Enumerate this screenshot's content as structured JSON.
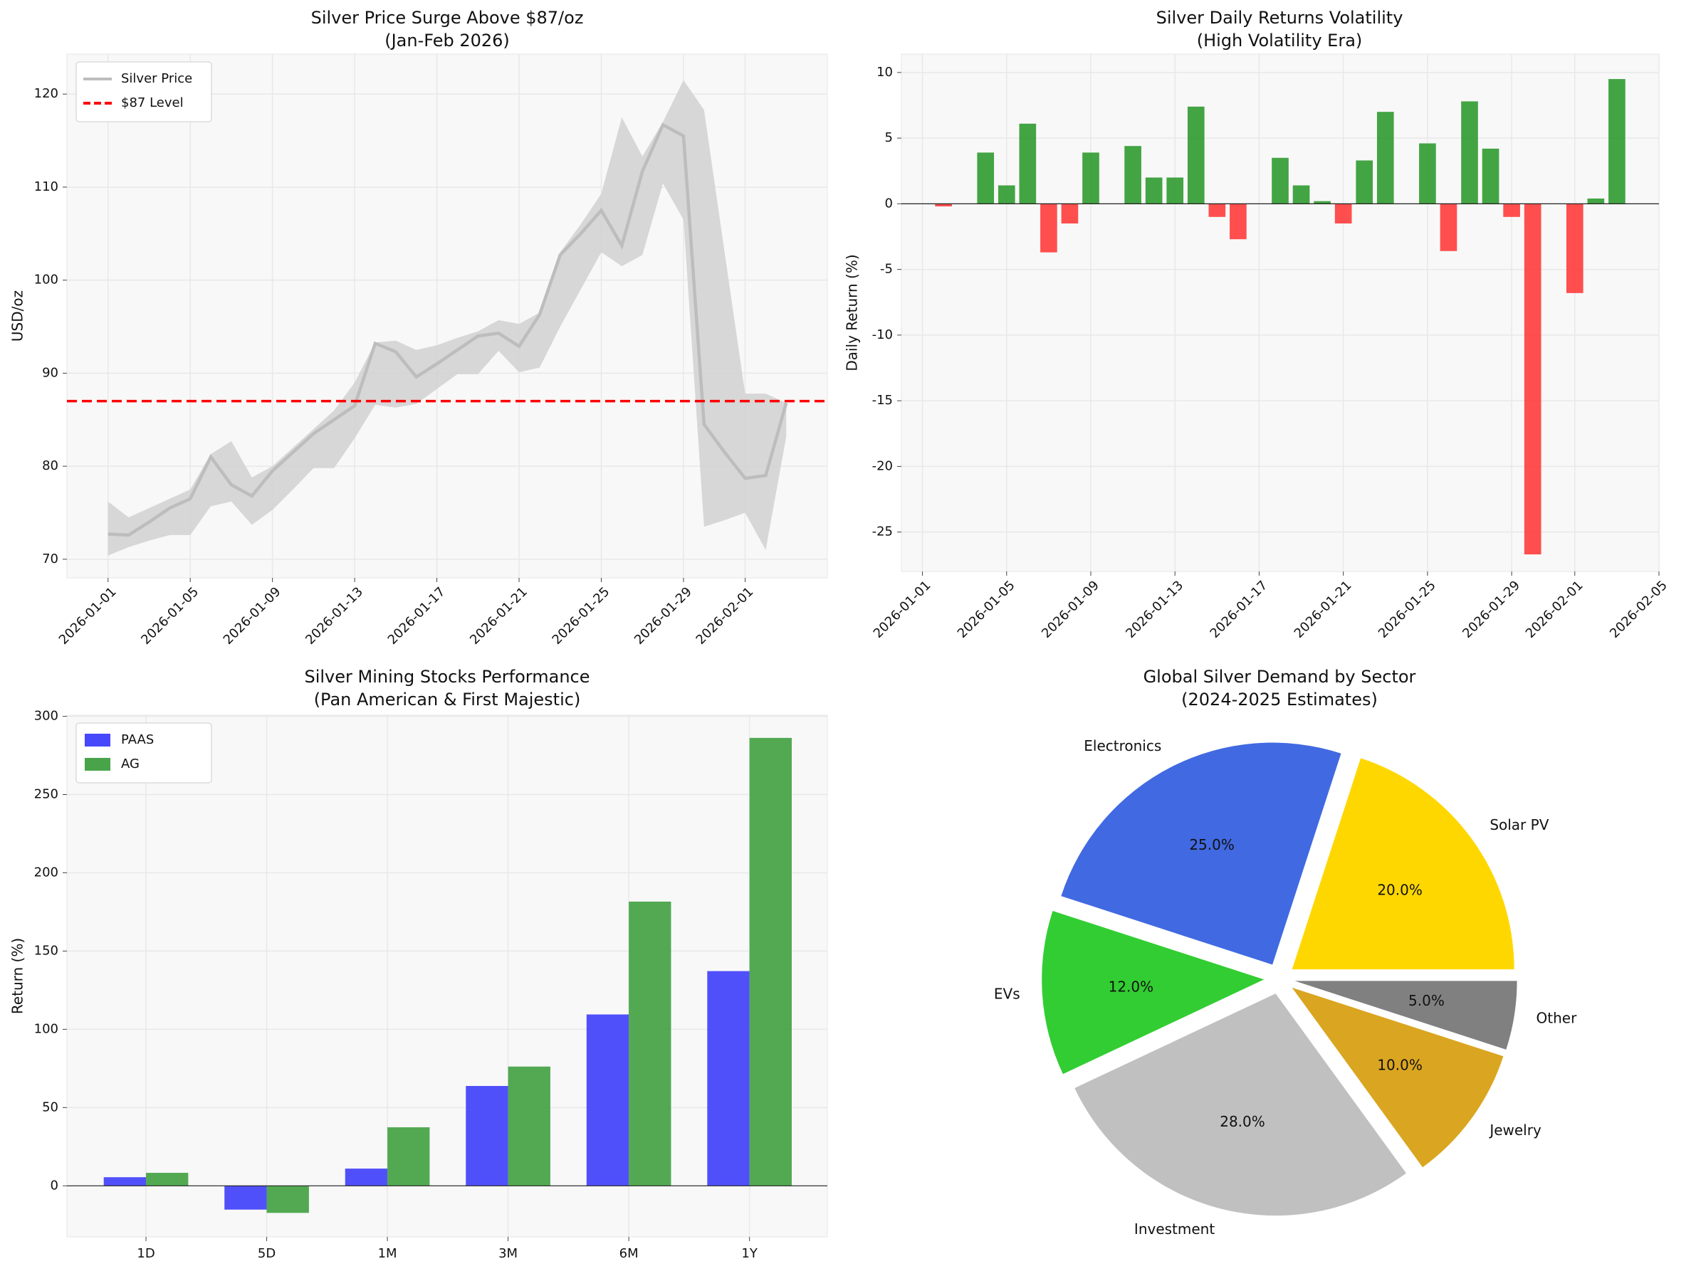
{
  "chart_data": [
    {
      "type": "line",
      "title": "Silver Price Surge Above $87/oz",
      "subtitle": "(Jan-Feb 2026)",
      "ylabel": "USD/oz",
      "x": [
        "2026-01-01",
        "2026-01-02",
        "2026-01-03",
        "2026-01-04",
        "2026-01-05",
        "2026-01-06",
        "2026-01-07",
        "2026-01-08",
        "2026-01-09",
        "2026-01-10",
        "2026-01-11",
        "2026-01-12",
        "2026-01-13",
        "2026-01-14",
        "2026-01-15",
        "2026-01-16",
        "2026-01-17",
        "2026-01-18",
        "2026-01-19",
        "2026-01-20",
        "2026-01-21",
        "2026-01-22",
        "2026-01-23",
        "2026-01-24",
        "2026-01-25",
        "2026-01-26",
        "2026-01-27",
        "2026-01-28",
        "2026-01-29",
        "2026-01-30",
        "2026-01-31",
        "2026-02-01",
        "2026-02-02",
        "2026-02-03"
      ],
      "series": [
        {
          "name": "Silver Price",
          "color": "#bdbdbd",
          "values": [
            72.7,
            72.6,
            74,
            75.5,
            76.5,
            81,
            78,
            76.8,
            79.5,
            81.5,
            83.5,
            85,
            86.5,
            93.2,
            92.3,
            89.6,
            91,
            92.5,
            94,
            94.3,
            92.9,
            96.3,
            102.7,
            105,
            107.5,
            103.7,
            111.7,
            116.7,
            115.5,
            84.5,
            81.5,
            78.7,
            79,
            86.8
          ]
        }
      ],
      "band": {
        "color": "#d3d3d3",
        "upper": [
          76.2,
          74.5,
          75.5,
          76.5,
          77.5,
          81.3,
          82.7,
          78.8,
          80,
          82,
          84,
          86,
          89,
          93.3,
          93.5,
          92.5,
          93,
          93.8,
          94.5,
          95.7,
          95.3,
          96.5,
          103,
          106,
          109.3,
          117.5,
          113.3,
          117,
          121.5,
          118.3,
          103,
          87.8,
          87.8,
          86.8
        ],
        "lower": [
          70.4,
          71.3,
          72,
          72.6,
          72.6,
          75.7,
          76.2,
          73.7,
          75.3,
          77.5,
          79.8,
          79.8,
          83,
          86.6,
          86.3,
          86.7,
          88.3,
          89.9,
          89.9,
          92.4,
          90.1,
          90.6,
          95,
          99,
          103,
          101.5,
          102.7,
          110.4,
          106.5,
          73.5,
          74.2,
          75,
          71,
          83.2
        ]
      },
      "hlines": [
        {
          "name": "$87 Level",
          "value": 87,
          "color": "#ff0000"
        }
      ],
      "xlim": [
        "2025-12-30",
        "2026-02-05"
      ],
      "xticks": [
        "2026-01-01",
        "2026-01-05",
        "2026-01-09",
        "2026-01-13",
        "2026-01-17",
        "2026-01-21",
        "2026-01-25",
        "2026-01-29",
        "2026-02-01"
      ],
      "ylim": [
        68,
        124.3
      ],
      "yticks": [
        70,
        80,
        90,
        100,
        110,
        120
      ],
      "grid": true,
      "legend": "upper left"
    },
    {
      "type": "bar",
      "title": "Silver Daily Returns Volatility",
      "subtitle": "(High Volatility Era)",
      "ylabel": "Daily Return (%)",
      "x": [
        "2026-01-02",
        "2026-01-04",
        "2026-01-05",
        "2026-01-06",
        "2026-01-07",
        "2026-01-08",
        "2026-01-09",
        "2026-01-11",
        "2026-01-12",
        "2026-01-13",
        "2026-01-14",
        "2026-01-15",
        "2026-01-16",
        "2026-01-18",
        "2026-01-19",
        "2026-01-20",
        "2026-01-21",
        "2026-01-22",
        "2026-01-23",
        "2026-01-25",
        "2026-01-26",
        "2026-01-27",
        "2026-01-28",
        "2026-01-29",
        "2026-01-30",
        "2026-02-01",
        "2026-02-02",
        "2026-02-03"
      ],
      "values": [
        -0.2,
        3.9,
        1.4,
        6.1,
        -3.7,
        -1.5,
        3.9,
        4.4,
        2.0,
        2.0,
        7.4,
        -1.0,
        -2.7,
        3.5,
        1.4,
        0.2,
        -1.5,
        3.3,
        7.0,
        4.6,
        -3.6,
        7.8,
        4.2,
        -1.0,
        -26.7,
        -6.8,
        0.4,
        9.5
      ],
      "positive_color": "#2f9a2f",
      "negative_color": "#ff3b3b",
      "xlim": [
        "2025-12-31",
        "2026-02-05"
      ],
      "xticks": [
        "2026-01-01",
        "2026-01-05",
        "2026-01-09",
        "2026-01-13",
        "2026-01-17",
        "2026-01-21",
        "2026-01-25",
        "2026-01-29",
        "2026-02-01",
        "2026-02-05"
      ],
      "ylim": [
        -28,
        11.4
      ],
      "yticks": [
        -25,
        -20,
        -15,
        -10,
        -5,
        0,
        5,
        10
      ],
      "grid": true
    },
    {
      "type": "grouped_bar",
      "title": "Silver Mining Stocks Performance",
      "subtitle": "(Pan American & First Majestic)",
      "ylabel": "Return (%)",
      "categories": [
        "1D",
        "5D",
        "1M",
        "3M",
        "6M",
        "1Y"
      ],
      "series": [
        {
          "name": "PAAS",
          "color": "#4747fb",
          "values": [
            5.5,
            -15.2,
            11,
            63.8,
            109.5,
            137.2
          ]
        },
        {
          "name": "AG",
          "color": "#49a449",
          "values": [
            8.3,
            -17.3,
            37.4,
            76.2,
            181.6,
            286.2
          ]
        }
      ],
      "ylim": [
        -32.6,
        300.7
      ],
      "yticks": [
        0,
        50,
        100,
        150,
        200,
        250,
        300
      ],
      "grid": true,
      "legend": "upper left"
    },
    {
      "type": "pie",
      "title": "Global Silver Demand by Sector",
      "subtitle": "(2024-2025 Estimates)",
      "labels": [
        "Solar PV",
        "Electronics",
        "EVs",
        "Investment",
        "Jewelry",
        "Other"
      ],
      "values": [
        20,
        25,
        12,
        28,
        10,
        5
      ],
      "value_labels": [
        "20.0%",
        "25.0%",
        "12.0%",
        "28.0%",
        "10.0%",
        "5.0%"
      ],
      "colors": [
        "#ffd700",
        "#4169e1",
        "#32cd32",
        "#c0c0c0",
        "#daa520",
        "#808080"
      ],
      "explode": 0.07
    }
  ]
}
